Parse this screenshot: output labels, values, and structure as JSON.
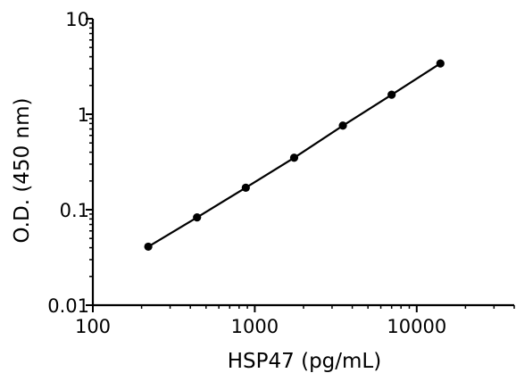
{
  "chart_data": {
    "type": "line",
    "xlabel": "HSP47 (pg/mL)",
    "ylabel": "O.D. (450 nm)",
    "x_scale": "log",
    "y_scale": "log",
    "xlim": [
      100,
      40000
    ],
    "ylim": [
      0.01,
      10
    ],
    "x_ticks": [
      100,
      1000,
      10000
    ],
    "x_tick_labels": [
      "100",
      "1000",
      "10000"
    ],
    "y_ticks": [
      0.01,
      0.1,
      1,
      10
    ],
    "y_tick_labels": [
      "0.01",
      "0.1",
      "1",
      "10"
    ],
    "grid": false,
    "series": [
      {
        "x": [
          220,
          440,
          880,
          1750,
          3500,
          7000,
          14000
        ],
        "y": [
          0.041,
          0.083,
          0.17,
          0.35,
          0.76,
          1.6,
          3.4
        ]
      }
    ]
  }
}
